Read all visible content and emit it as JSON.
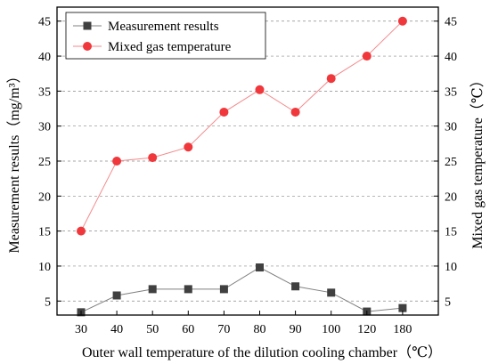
{
  "chart_data": {
    "type": "line",
    "xlabel": "Outer wall temperature of the dilution cooling chamber（℃）",
    "ylabel_left": "Measurement results（mg/m³）",
    "ylabel_right": "Mixed gas temperature（℃）",
    "categories": [
      "30",
      "40",
      "50",
      "60",
      "70",
      "80",
      "90",
      "100",
      "120",
      "180"
    ],
    "ylim": [
      3,
      47
    ],
    "yticks": [
      5,
      10,
      15,
      20,
      25,
      30,
      35,
      40,
      45
    ],
    "grid": true,
    "legend_position": "top-left",
    "series": [
      {
        "name": "Measurement results",
        "axis": "left",
        "marker": "square",
        "color": "#000000",
        "line_color": "#808080",
        "values": [
          3.4,
          5.8,
          6.7,
          6.7,
          6.7,
          9.8,
          7.1,
          6.2,
          3.5,
          4.0
        ]
      },
      {
        "name": "Mixed gas temperature",
        "axis": "right",
        "marker": "circle",
        "color": "#f0383c",
        "line_color": "#f48a8c",
        "values": [
          15.0,
          25.0,
          25.5,
          27.0,
          32.0,
          35.2,
          32.0,
          36.8,
          40.0,
          45.0
        ]
      }
    ]
  }
}
